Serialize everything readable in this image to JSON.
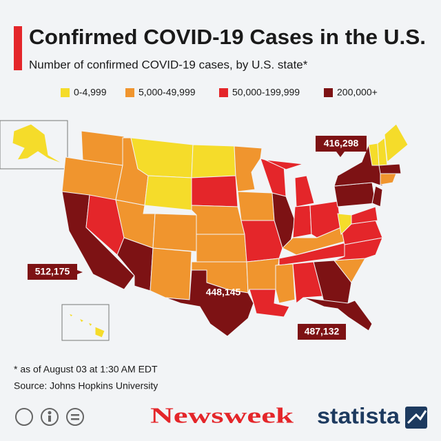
{
  "title": "Confirmed COVID-19 Cases in the U.S.",
  "subtitle": "Number of confirmed COVID-19 cases, by U.S. state*",
  "legend": [
    {
      "label": "0-4,999",
      "color": "#f5dc2a"
    },
    {
      "label": "5,000-49,999",
      "color": "#f0952e"
    },
    {
      "label": "50,000-199,999",
      "color": "#e4262a"
    },
    {
      "label": "200,000+",
      "color": "#7d1214"
    }
  ],
  "callouts": [
    {
      "value": 416298,
      "label": "416,298"
    },
    {
      "value": 512175,
      "label": "512,175"
    },
    {
      "value": 448145,
      "label": "448,145"
    },
    {
      "value": 487132,
      "label": "487,132"
    }
  ],
  "footnote": "* as of August 03 at 1:30 AM EDT",
  "source": "Source: Johns Hopkins University",
  "brands": [
    "Newsweek",
    "statista"
  ]
}
